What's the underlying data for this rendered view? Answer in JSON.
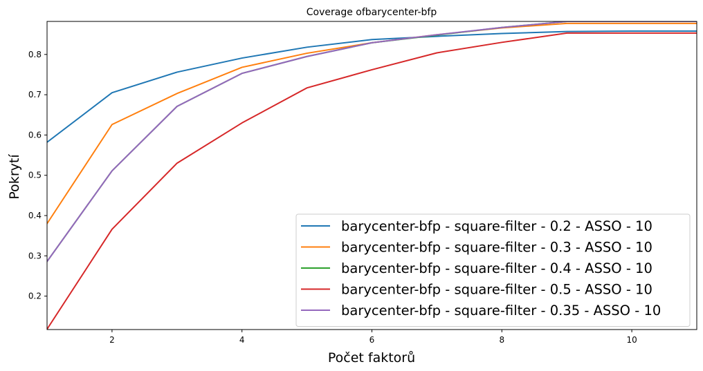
{
  "chart_data": {
    "type": "line",
    "title": "Coverage ofbarycenter-bfp",
    "xlabel": "Počet faktorů",
    "ylabel": "Pokrytí",
    "xlim": [
      1,
      11
    ],
    "ylim": [
      0.117,
      0.882
    ],
    "xticks": [
      2,
      4,
      6,
      8,
      10
    ],
    "yticks": [
      0.2,
      0.3,
      0.4,
      0.5,
      0.6,
      0.7,
      0.8
    ],
    "ytick_labels": [
      "0.2",
      "0.3",
      "0.4",
      "0.5",
      "0.6",
      "0.7",
      "0.8"
    ],
    "grid": false,
    "legend_position": "lower-right",
    "x": [
      1,
      2,
      3,
      4,
      5,
      6,
      7,
      8,
      9,
      10,
      11
    ],
    "series": [
      {
        "name": "barycenter-bfp - square-filter - 0.2 - ASSO - 10",
        "color": "#1f77b4",
        "values": [
          0.582,
          0.705,
          0.756,
          0.791,
          0.818,
          0.837,
          0.845,
          0.852,
          0.857,
          0.858,
          0.858
        ]
      },
      {
        "name": "barycenter-bfp - square-filter - 0.3 - ASSO - 10",
        "color": "#ff7f0e",
        "values": [
          0.38,
          0.626,
          0.703,
          0.768,
          0.803,
          0.829,
          0.849,
          0.866,
          0.877,
          0.877,
          0.877
        ]
      },
      {
        "name": "barycenter-bfp - square-filter - 0.4 - ASSO - 10",
        "color": "#2ca02c",
        "values": [
          0.286,
          0.511,
          0.671,
          0.753,
          0.795,
          0.829,
          0.848,
          0.867,
          0.882,
          0.882,
          0.882
        ]
      },
      {
        "name": "barycenter-bfp - square-filter - 0.5 - ASSO - 10",
        "color": "#d62728",
        "values": [
          0.118,
          0.366,
          0.53,
          0.63,
          0.717,
          0.762,
          0.804,
          0.83,
          0.853,
          0.853,
          0.853
        ]
      },
      {
        "name": "barycenter-bfp - square-filter - 0.35 - ASSO - 10",
        "color": "#9467bd",
        "values": [
          0.286,
          0.511,
          0.671,
          0.753,
          0.795,
          0.829,
          0.849,
          0.867,
          0.882,
          0.882,
          0.882
        ]
      }
    ]
  }
}
